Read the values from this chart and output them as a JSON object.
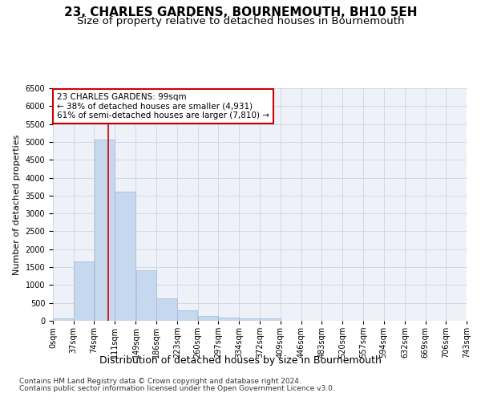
{
  "title": "23, CHARLES GARDENS, BOURNEMOUTH, BH10 5EH",
  "subtitle": "Size of property relative to detached houses in Bournemouth",
  "xlabel": "Distribution of detached houses by size in Bournemouth",
  "ylabel": "Number of detached properties",
  "bar_values": [
    75,
    1650,
    5075,
    3600,
    1420,
    620,
    290,
    145,
    100,
    75,
    75,
    0,
    0,
    0,
    0,
    0,
    0,
    0,
    0,
    0
  ],
  "bar_left_edges": [
    0,
    37,
    74,
    111,
    149,
    186,
    223,
    260,
    297,
    334,
    372,
    409,
    446,
    483,
    520,
    557,
    594,
    632,
    669,
    706
  ],
  "bin_width": 37,
  "tick_labels": [
    "0sqm",
    "37sqm",
    "74sqm",
    "111sqm",
    "149sqm",
    "186sqm",
    "223sqm",
    "260sqm",
    "297sqm",
    "334sqm",
    "372sqm",
    "409sqm",
    "446sqm",
    "483sqm",
    "520sqm",
    "557sqm",
    "594sqm",
    "632sqm",
    "669sqm",
    "706sqm",
    "743sqm"
  ],
  "property_size": 99,
  "annotation_line1": "23 CHARLES GARDENS: 99sqm",
  "annotation_line2": "← 38% of detached houses are smaller (4,931)",
  "annotation_line3": "61% of semi-detached houses are larger (7,810) →",
  "vline_x": 99,
  "bar_color": "#c5d8ed",
  "bar_edge_color": "#a0b8d8",
  "vline_color": "#cc0000",
  "annotation_box_color": "#cc0000",
  "ylim": [
    0,
    6500
  ],
  "yticks": [
    0,
    500,
    1000,
    1500,
    2000,
    2500,
    3000,
    3500,
    4000,
    4500,
    5000,
    5500,
    6000,
    6500
  ],
  "grid_color": "#d0d8e8",
  "footer_line1": "Contains HM Land Registry data © Crown copyright and database right 2024.",
  "footer_line2": "Contains public sector information licensed under the Open Government Licence v3.0.",
  "title_fontsize": 11,
  "subtitle_fontsize": 9.5,
  "xlabel_fontsize": 9,
  "ylabel_fontsize": 8,
  "tick_fontsize": 7,
  "annotation_fontsize": 7.5,
  "footer_fontsize": 6.5
}
